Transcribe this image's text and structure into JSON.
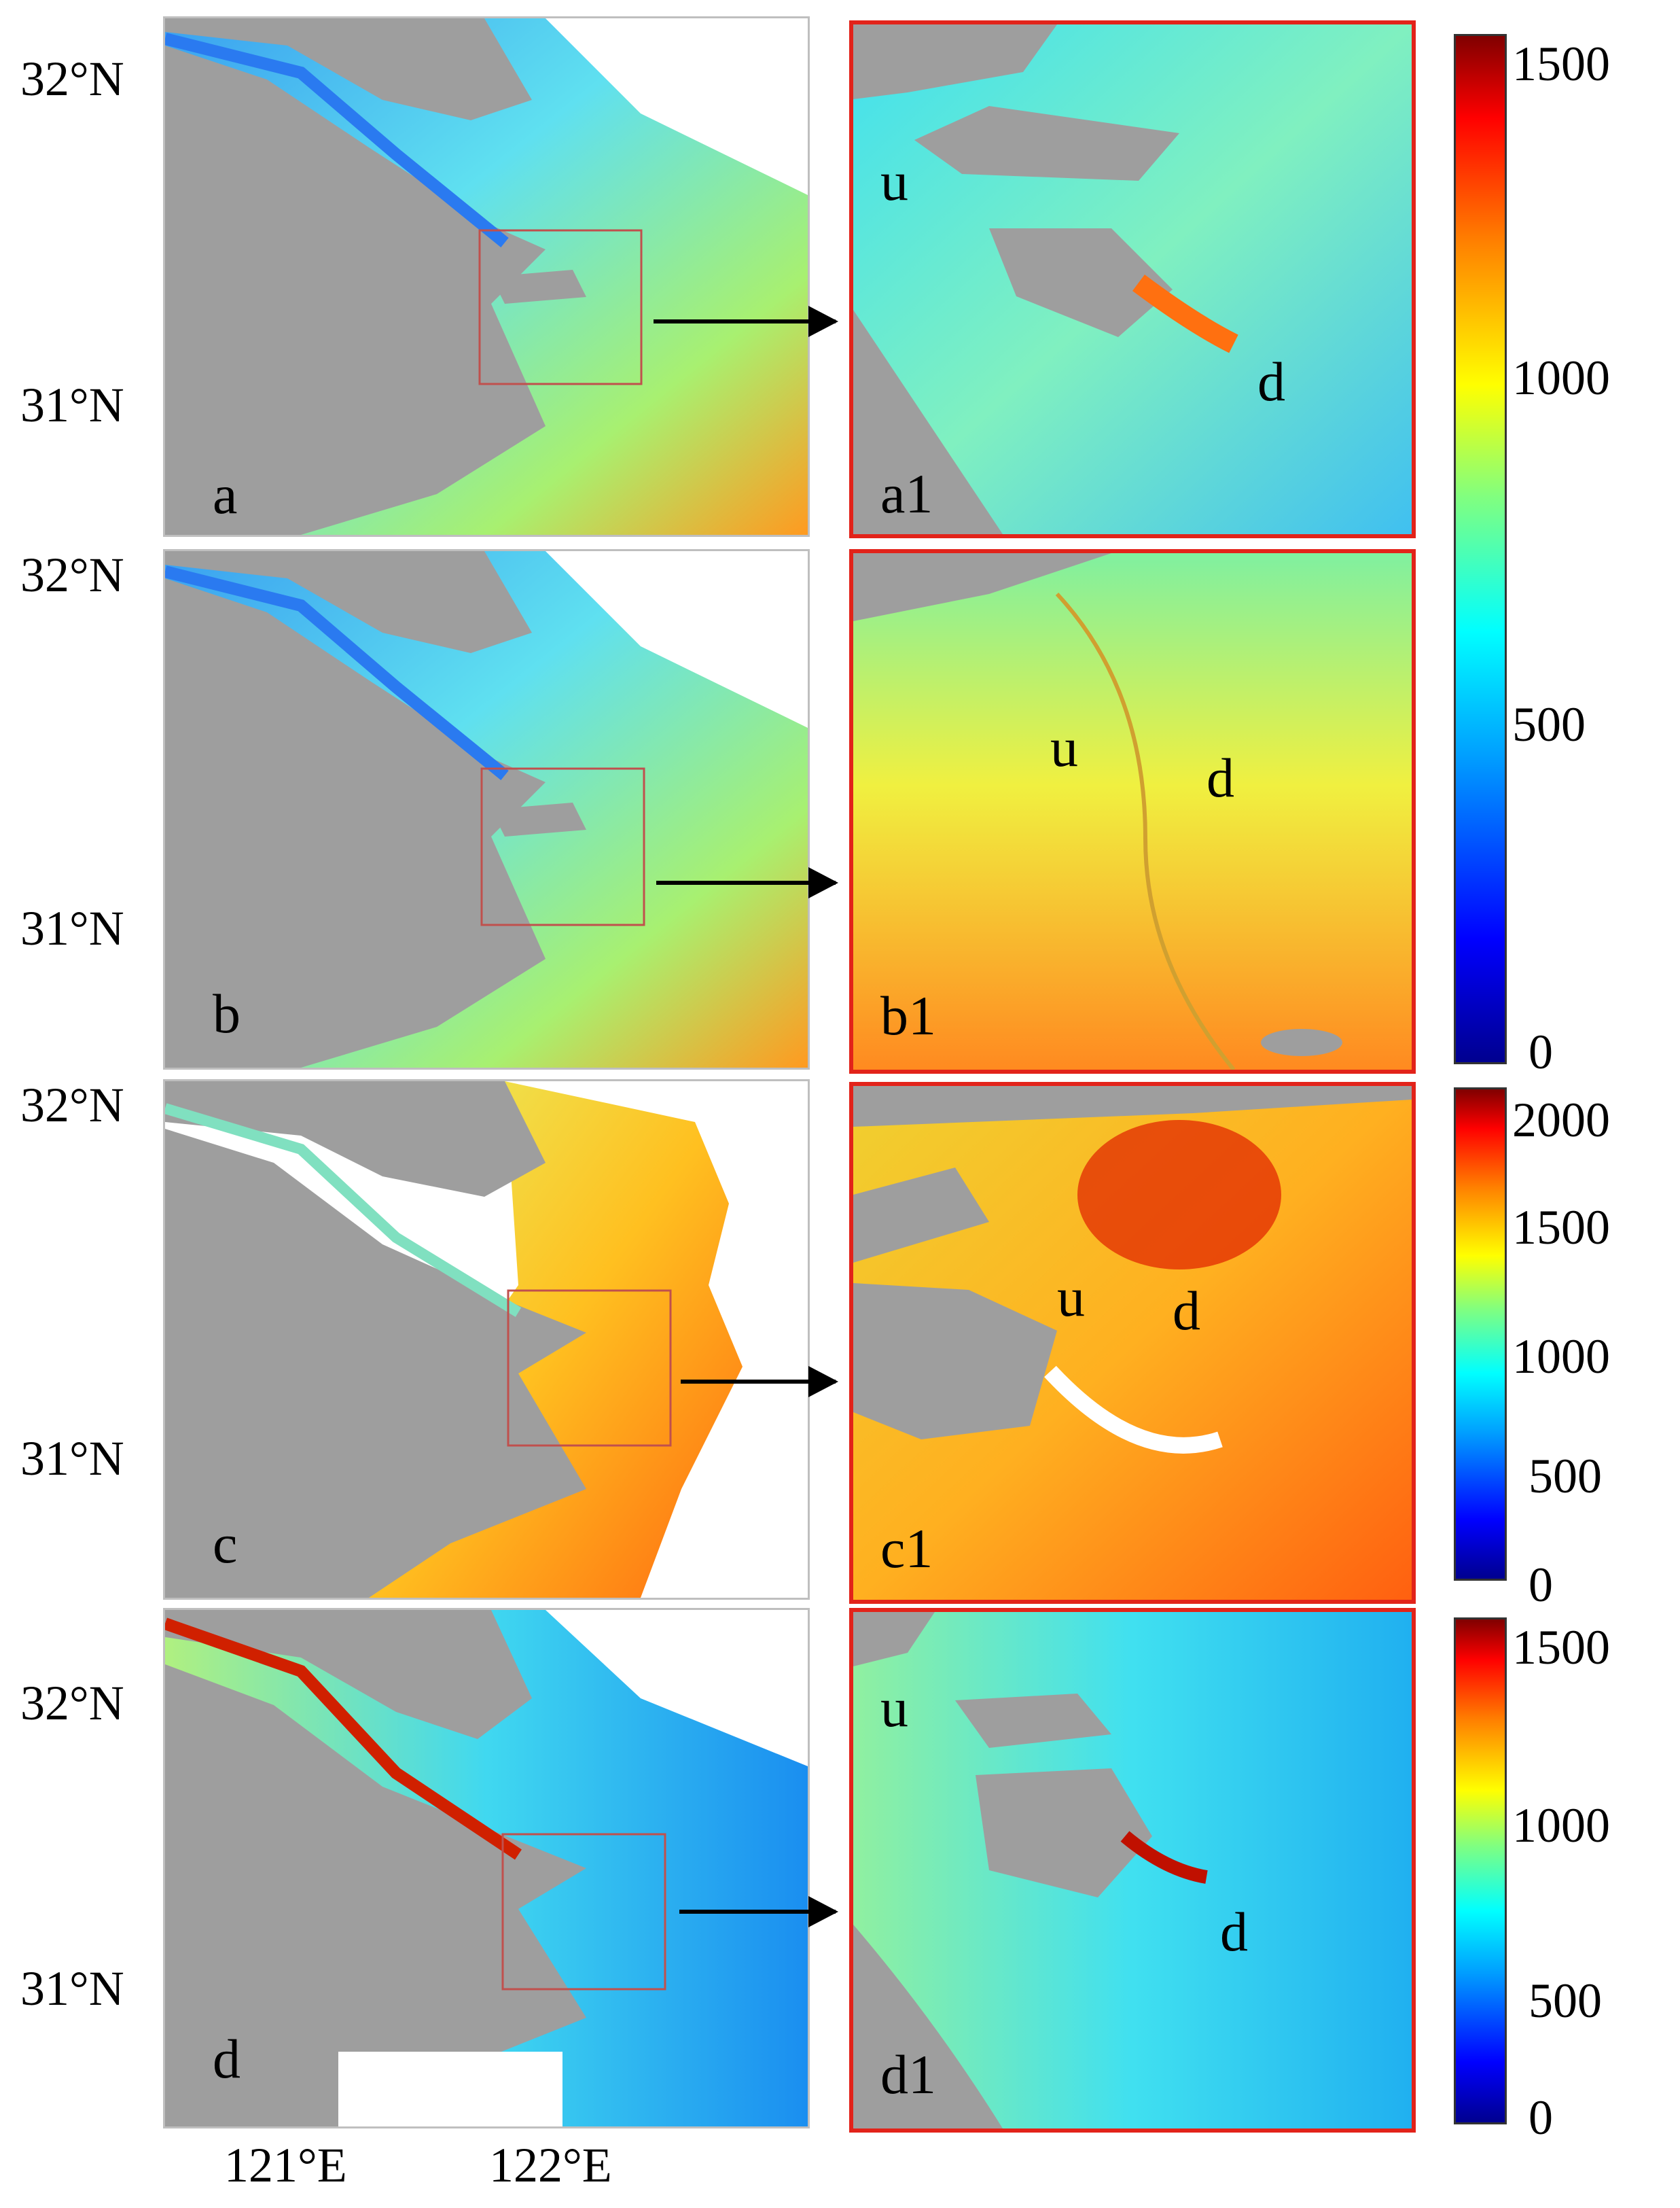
{
  "colors": {
    "land": "#9e9e9e",
    "frame_zoom": "#e2231a",
    "inset_box": "#c0504d",
    "colormap": [
      "#00008f",
      "#0000ff",
      "#00a0ff",
      "#00ffff",
      "#80ff80",
      "#ffff00",
      "#ff8000",
      "#ff0000",
      "#800000"
    ]
  },
  "lat_labels": {
    "n32": "32°N",
    "n31": "31°N"
  },
  "lon_labels": {
    "e121": "121°E",
    "e122": "122°E"
  },
  "panels": [
    {
      "label": "a",
      "zoom_label": "a1",
      "marker_u": "u",
      "marker_d": "d",
      "style": "cool"
    },
    {
      "label": "b",
      "zoom_label": "b1",
      "marker_u": "u",
      "marker_d": "d",
      "style": "cool"
    },
    {
      "label": "c",
      "zoom_label": "c1",
      "marker_u": "u",
      "marker_d": "d",
      "style": "warm"
    },
    {
      "label": "d",
      "zoom_label": "d1",
      "marker_u": "u",
      "marker_d": "d",
      "style": "mid"
    }
  ],
  "colorbars": [
    {
      "ticks": [
        "1500",
        "1000",
        "500",
        "0"
      ],
      "max": 1500
    },
    {
      "ticks": [
        "2000",
        "1500",
        "1000",
        "500",
        "0"
      ],
      "max": 2000
    },
    {
      "ticks": [
        "1500",
        "1000",
        "500",
        "0"
      ],
      "max": 1500
    }
  ]
}
